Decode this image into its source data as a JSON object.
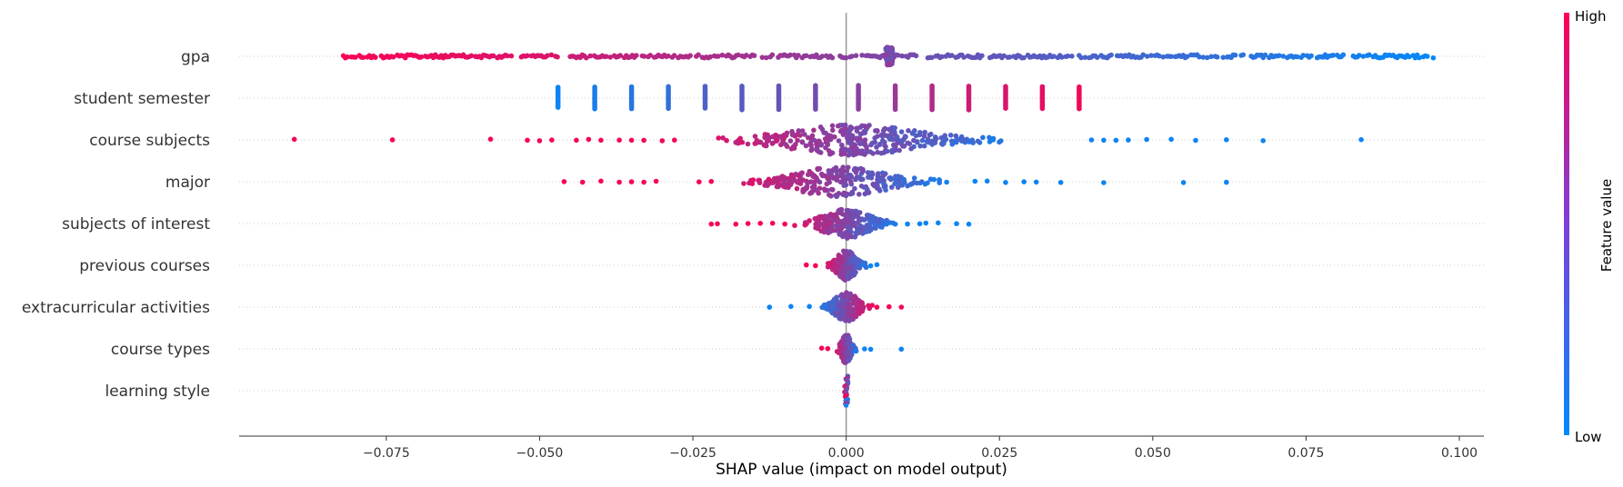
{
  "chart_data": {
    "type": "scatter",
    "subtype": "shap-beeswarm",
    "xlabel": "SHAP value (impact on model output)",
    "xlim": [
      -0.099,
      0.104
    ],
    "x_ticks": [
      -0.075,
      -0.05,
      -0.025,
      0.0,
      0.025,
      0.05,
      0.075,
      0.1
    ],
    "x_tick_labels": [
      "−0.075",
      "−0.050",
      "−0.025",
      "0.000",
      "0.025",
      "0.050",
      "0.075",
      "0.100"
    ],
    "zero_line": 0.0,
    "horizontal_gridlines": true,
    "colorbar": {
      "title": "Feature value",
      "high_label": "High",
      "low_label": "Low",
      "low_color": "#008bfb",
      "high_color": "#ff0052"
    },
    "features": [
      {
        "name": "gpa",
        "shape": "dense-line",
        "segments": [
          {
            "from": -0.082,
            "to": -0.047,
            "f0": 0.98,
            "f1": 0.85
          },
          {
            "from": -0.045,
            "to": -0.002,
            "f0": 0.8,
            "f1": 0.55
          },
          {
            "from": -0.001,
            "to": 0.012,
            "f0": 0.55,
            "f1": 0.45
          },
          {
            "from": 0.013,
            "to": 0.037,
            "f0": 0.42,
            "f1": 0.32
          },
          {
            "from": 0.038,
            "to": 0.096,
            "f0": 0.3,
            "f1": 0.02
          }
        ],
        "cluster": {
          "x": 0.007,
          "f": 0.5,
          "spread": 0.004
        }
      },
      {
        "name": "student semester",
        "shape": "columns",
        "columns": [
          {
            "x": -0.047,
            "f": 0.05
          },
          {
            "x": -0.041,
            "f": 0.1
          },
          {
            "x": -0.035,
            "f": 0.15
          },
          {
            "x": -0.029,
            "f": 0.2
          },
          {
            "x": -0.023,
            "f": 0.3
          },
          {
            "x": -0.017,
            "f": 0.35
          },
          {
            "x": -0.011,
            "f": 0.4
          },
          {
            "x": -0.005,
            "f": 0.45
          },
          {
            "x": 0.002,
            "f": 0.55
          },
          {
            "x": 0.008,
            "f": 0.6
          },
          {
            "x": 0.014,
            "f": 0.7
          },
          {
            "x": 0.02,
            "f": 0.8
          },
          {
            "x": 0.026,
            "f": 0.85
          },
          {
            "x": 0.032,
            "f": 0.9
          },
          {
            "x": 0.038,
            "f": 0.95
          }
        ]
      },
      {
        "name": "course subjects",
        "shape": "swarm",
        "center": 0.001,
        "core_width": 0.03,
        "outliers_neg": [
          -0.09,
          -0.074,
          -0.058,
          -0.052,
          -0.05,
          -0.048,
          -0.044,
          -0.042,
          -0.04,
          -0.037,
          -0.035,
          -0.033,
          -0.03,
          -0.028
        ],
        "outliers_pos": [
          0.04,
          0.042,
          0.044,
          0.046,
          0.049,
          0.053,
          0.057,
          0.062,
          0.068,
          0.084
        ]
      },
      {
        "name": "major",
        "shape": "swarm",
        "center": -0.001,
        "core_width": 0.02,
        "outliers_neg": [
          -0.046,
          -0.043,
          -0.04,
          -0.037,
          -0.035,
          -0.033,
          -0.031,
          -0.024,
          -0.022
        ],
        "outliers_pos": [
          0.021,
          0.023,
          0.026,
          0.029,
          0.031,
          0.035,
          0.042,
          0.055,
          0.062
        ]
      },
      {
        "name": "subjects of interest",
        "shape": "swarm",
        "center": 0.0,
        "core_width": 0.01,
        "outliers_neg": [
          -0.022,
          -0.021,
          -0.018,
          -0.016,
          -0.014,
          -0.012,
          -0.01
        ],
        "outliers_pos": [
          0.01,
          0.012,
          0.013,
          0.015,
          0.018,
          0.02
        ]
      },
      {
        "name": "previous courses",
        "shape": "swarm",
        "center": 0.0,
        "core_width": 0.004,
        "outliers_neg": [
          -0.0065,
          -0.005
        ],
        "outliers_pos": [
          0.004,
          0.005
        ]
      },
      {
        "name": "extracurricular activities",
        "shape": "swarm",
        "center": 0.0,
        "core_width": 0.005,
        "reversed": true,
        "outliers_neg": [
          -0.0125,
          -0.009,
          -0.006
        ],
        "outliers_pos": [
          0.005,
          0.007,
          0.009
        ]
      },
      {
        "name": "course types",
        "shape": "swarm",
        "center": 0.0,
        "core_width": 0.002,
        "outliers_neg": [
          -0.004,
          -0.003
        ],
        "outliers_pos": [
          0.003,
          0.004,
          0.009
        ]
      },
      {
        "name": "learning style",
        "shape": "narrow-column",
        "center": 0.0,
        "core_width": 0.0005
      }
    ]
  }
}
